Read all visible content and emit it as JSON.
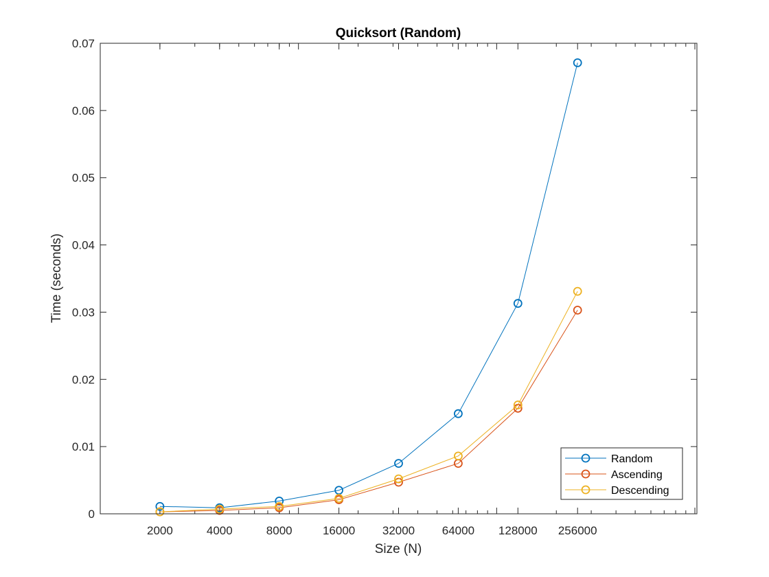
{
  "chart_data": {
    "type": "line",
    "title": "Quicksort (Random)",
    "xlabel": "Size (N)",
    "ylabel": "Time (seconds)",
    "x_scale": "log2",
    "x": [
      2000,
      4000,
      8000,
      16000,
      32000,
      64000,
      128000,
      256000
    ],
    "x_tick_labels": [
      "2000",
      "4000",
      "8000",
      "16000",
      "32000",
      "64000",
      "128000",
      "256000"
    ],
    "xlim": [
      1000,
      1024000
    ],
    "ylim": [
      0,
      0.07
    ],
    "y_ticks": [
      0,
      0.01,
      0.02,
      0.03,
      0.04,
      0.05,
      0.06,
      0.07
    ],
    "y_tick_labels": [
      "0",
      "0.01",
      "0.02",
      "0.03",
      "0.04",
      "0.05",
      "0.06",
      "0.07"
    ],
    "grid": false,
    "box": true,
    "legend_position": "bottom-right",
    "marker": "circle",
    "series": [
      {
        "name": "Random",
        "color": "#0072BD",
        "values": [
          0.0011,
          0.0009,
          0.0019,
          0.0035,
          0.0075,
          0.0149,
          0.0313,
          0.0671
        ]
      },
      {
        "name": "Ascending",
        "color": "#D95319",
        "values": [
          0.0003,
          0.0005,
          0.0009,
          0.0021,
          0.0047,
          0.0075,
          0.0157,
          0.0303
        ]
      },
      {
        "name": "Descending",
        "color": "#EDB120",
        "values": [
          0.0003,
          0.0007,
          0.0011,
          0.0023,
          0.0052,
          0.0086,
          0.0162,
          0.0331
        ]
      }
    ]
  }
}
